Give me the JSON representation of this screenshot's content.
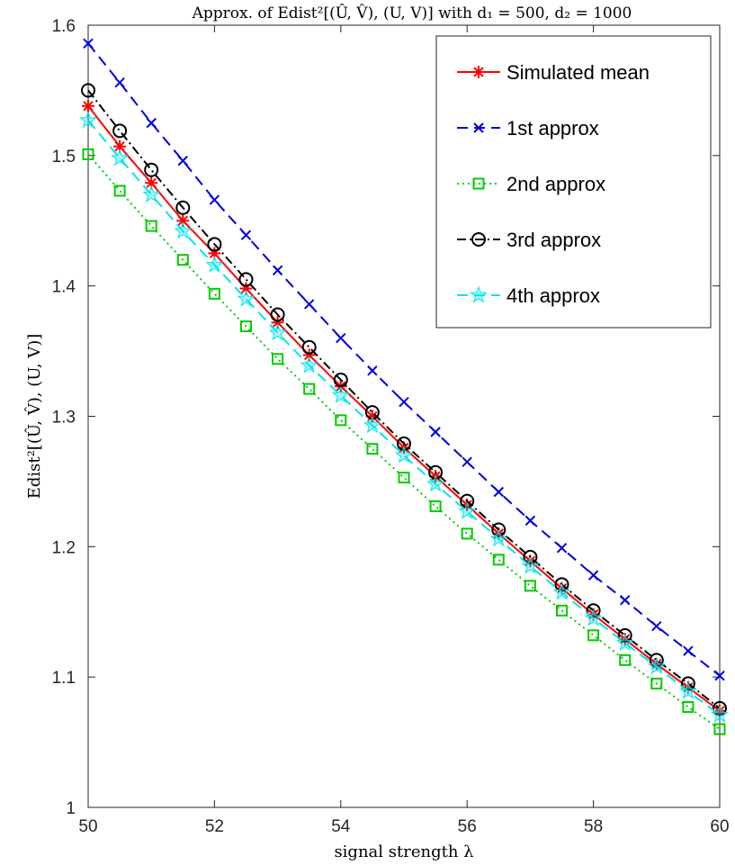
{
  "chart_data": {
    "type": "line",
    "title": "Approx. of Edist²[(Û, V̂), (U, V)] with d₁ = 500, d₂ = 1000",
    "xlabel": "signal strength λ",
    "ylabel": "Edist²[(Û, V̂), (U, V)]",
    "xlim": [
      50,
      60
    ],
    "ylim": [
      1,
      1.6
    ],
    "xticks": [
      50,
      52,
      54,
      56,
      58,
      60
    ],
    "xtick_labels": [
      "50",
      "52",
      "54",
      "56",
      "58",
      "60"
    ],
    "yticks": [
      1,
      1.1,
      1.2,
      1.3,
      1.4,
      1.5,
      1.6
    ],
    "ytick_labels": [
      "1",
      "1.1",
      "1.2",
      "1.3",
      "1.4",
      "1.5",
      "1.6"
    ],
    "grid": false,
    "legend_position": "top-right",
    "x": [
      50,
      50.5,
      51,
      51.5,
      52,
      52.5,
      53,
      53.5,
      54,
      54.5,
      55,
      55.5,
      56,
      56.5,
      57,
      57.5,
      58,
      58.5,
      59,
      59.5,
      60
    ],
    "series": [
      {
        "name": "Simulated mean",
        "color": "#ff0000",
        "dash": "solid",
        "marker": "asterisk",
        "values": [
          1.538,
          1.507,
          1.479,
          1.45,
          1.425,
          1.398,
          1.372,
          1.347,
          1.323,
          1.3,
          1.276,
          1.254,
          1.232,
          1.21,
          1.189,
          1.168,
          1.148,
          1.129,
          1.11,
          1.092,
          1.074
        ]
      },
      {
        "name": "1st approx",
        "color": "#0000dd",
        "dash": "dashed",
        "marker": "x",
        "values": [
          1.586,
          1.556,
          1.525,
          1.496,
          1.466,
          1.439,
          1.412,
          1.386,
          1.36,
          1.335,
          1.311,
          1.288,
          1.265,
          1.242,
          1.22,
          1.199,
          1.178,
          1.159,
          1.139,
          1.12,
          1.101
        ]
      },
      {
        "name": "2nd approx",
        "color": "#00cc00",
        "dash": "dotted",
        "marker": "square",
        "values": [
          1.501,
          1.473,
          1.446,
          1.42,
          1.394,
          1.369,
          1.344,
          1.321,
          1.297,
          1.275,
          1.253,
          1.231,
          1.21,
          1.19,
          1.17,
          1.151,
          1.132,
          1.113,
          1.095,
          1.077,
          1.06
        ]
      },
      {
        "name": "3rd approx",
        "color": "#000000",
        "dash": "dashdot",
        "marker": "circle",
        "values": [
          1.55,
          1.519,
          1.489,
          1.46,
          1.432,
          1.405,
          1.378,
          1.353,
          1.328,
          1.303,
          1.279,
          1.257,
          1.235,
          1.213,
          1.192,
          1.171,
          1.151,
          1.132,
          1.113,
          1.095,
          1.076
        ]
      },
      {
        "name": "4th approx",
        "color": "#00e5ee",
        "dash": "dashed",
        "marker": "pentagram",
        "values": [
          1.527,
          1.498,
          1.47,
          1.442,
          1.416,
          1.39,
          1.364,
          1.339,
          1.316,
          1.293,
          1.27,
          1.248,
          1.227,
          1.206,
          1.185,
          1.165,
          1.145,
          1.126,
          1.108,
          1.089,
          1.071
        ]
      }
    ]
  }
}
